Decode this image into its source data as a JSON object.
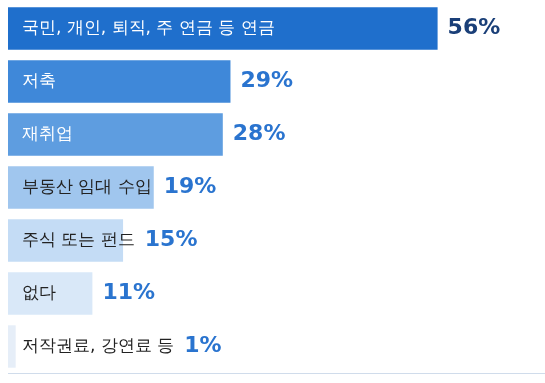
{
  "chart_data": {
    "type": "bar",
    "orientation": "horizontal",
    "categories": [
      "국민, 개인, 퇴직, 주 연금 등 연금",
      "저축",
      "재취업",
      "부동산 임대 수입",
      "주식 또는 펀드",
      "없다",
      "저작권료, 강연료 등"
    ],
    "values": [
      56,
      29,
      28,
      19,
      15,
      11,
      1
    ],
    "value_labels": [
      "56%",
      "29%",
      "28%",
      "19%",
      "15%",
      "11%",
      "1%"
    ],
    "colors": [
      "#1f6fcc",
      "#3f88d9",
      "#5e9de0",
      "#a0c6ee",
      "#c4dcf5",
      "#d9e8f8",
      "#e6eef8"
    ],
    "xlim": [
      0,
      70
    ],
    "grid": false,
    "tick_labels": false,
    "data_labels": true
  }
}
